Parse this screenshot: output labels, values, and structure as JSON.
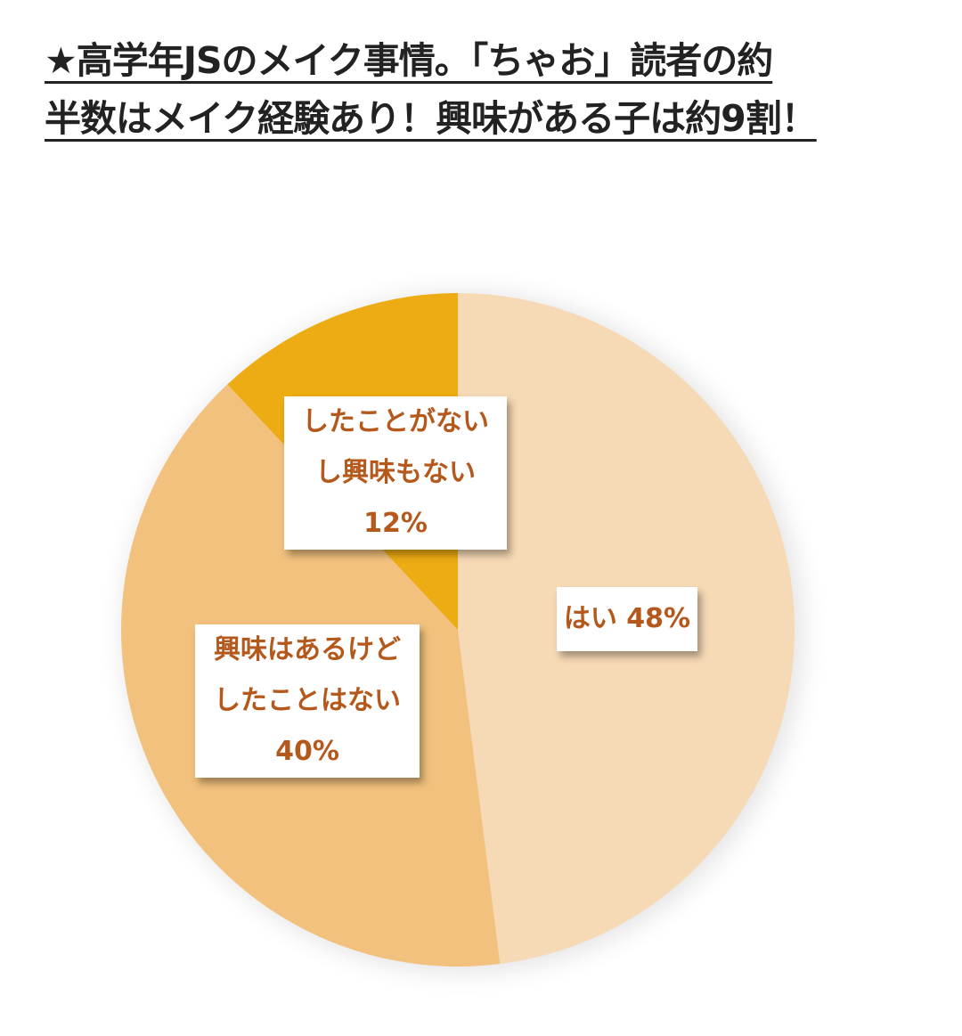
{
  "headline": {
    "line1": "★高学年JSのメイク事情。「ちゃお」読者の約",
    "line2": "半数はメイク経験あり！興味がある子は約9割！"
  },
  "chart_data": {
    "type": "pie",
    "title": "",
    "start_angle_deg": 0,
    "direction": "clockwise",
    "slices": [
      {
        "label_lines": [
          "はい 48%"
        ],
        "value": 48,
        "color": "#f6d9b5"
      },
      {
        "label_lines": [
          "興味はあるけど",
          "したことはない",
          "40%"
        ],
        "value": 40,
        "color": "#f2c17d"
      },
      {
        "label_lines": [
          "したことがない",
          "し興味もない",
          "12%"
        ],
        "value": 12,
        "color": "#edac13"
      }
    ]
  }
}
